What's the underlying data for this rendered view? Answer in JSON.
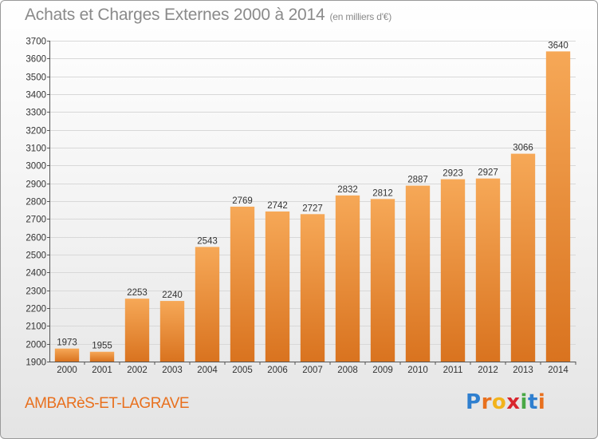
{
  "header": {
    "title": "Achats et Charges Externes 2000 à 2014",
    "unit": "(en milliers d'€)"
  },
  "footer": {
    "commune": "AMBARèS-ET-LAGRAVE",
    "logo_letters": [
      "P",
      "r",
      "o",
      "x",
      "i",
      "t",
      "i"
    ],
    "logo_colors": [
      "#2f7fcf",
      "#e8701e",
      "#f2b31c",
      "#d8262e",
      "#49a845",
      "#2f7fcf",
      "#e8701e"
    ]
  },
  "colors": {
    "bar_top": "#f6a857",
    "bar_bottom": "#d9731f",
    "grid": "#d8d8d8",
    "axis_text": "#333333"
  },
  "chart_data": {
    "type": "bar",
    "title": "Achats et Charges Externes 2000 à 2014",
    "subtitle": "(en milliers d'€)",
    "categories": [
      "2000",
      "2001",
      "2002",
      "2003",
      "2004",
      "2005",
      "2006",
      "2007",
      "2008",
      "2009",
      "2010",
      "2011",
      "2012",
      "2013",
      "2014"
    ],
    "values": [
      1973,
      1955,
      2253,
      2240,
      2543,
      2769,
      2742,
      2727,
      2832,
      2812,
      2887,
      2923,
      2927,
      3066,
      3640
    ],
    "ylim": [
      1900,
      3700
    ],
    "yticks": [
      1900,
      2000,
      2100,
      2200,
      2300,
      2400,
      2500,
      2600,
      2700,
      2800,
      2900,
      3000,
      3100,
      3200,
      3300,
      3400,
      3500,
      3600,
      3700
    ],
    "grid": true,
    "data_labels": true
  }
}
